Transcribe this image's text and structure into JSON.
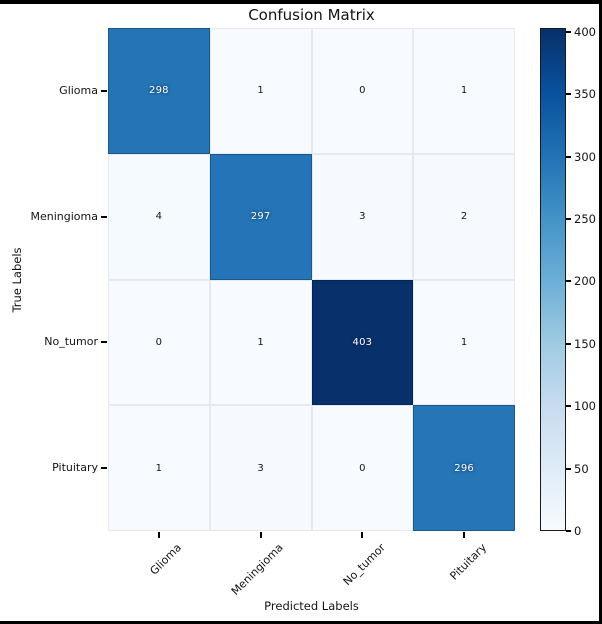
{
  "chart_data": {
    "type": "heatmap",
    "title": "Confusion Matrix",
    "xlabel": "Predicted Labels",
    "ylabel": "True Labels",
    "x_categories": [
      "Glioma",
      "Meningioma",
      "No_tumor",
      "Pituitary"
    ],
    "y_categories": [
      "Glioma",
      "Meningioma",
      "No_tumor",
      "Pituitary"
    ],
    "values": [
      [
        298,
        1,
        0,
        1
      ],
      [
        4,
        297,
        3,
        2
      ],
      [
        0,
        1,
        403,
        1
      ],
      [
        1,
        3,
        0,
        296
      ]
    ],
    "vmin": 0,
    "vmax": 403,
    "colorbar_ticks": [
      0,
      50,
      100,
      150,
      200,
      250,
      300,
      350,
      400
    ],
    "colormap_name": "Blues",
    "cmap_stops": [
      {
        "t": 0,
        "color": "#f7fbff"
      },
      {
        "t": 0.125,
        "color": "#deebf7"
      },
      {
        "t": 0.25,
        "color": "#c6dbef"
      },
      {
        "t": 0.375,
        "color": "#9ecae1"
      },
      {
        "t": 0.5,
        "color": "#6baed6"
      },
      {
        "t": 0.625,
        "color": "#4292c6"
      },
      {
        "t": 0.75,
        "color": "#2171b5"
      },
      {
        "t": 0.875,
        "color": "#08519c"
      },
      {
        "t": 1,
        "color": "#08306b"
      }
    ],
    "grid": false,
    "legend_position": "right-colorbar"
  },
  "colors": {
    "annotation_on_dark": "#ffffff",
    "annotation_on_light": "#151515",
    "frame_border": "#000000",
    "background": "#ffffff",
    "tick_color": "#000000"
  }
}
